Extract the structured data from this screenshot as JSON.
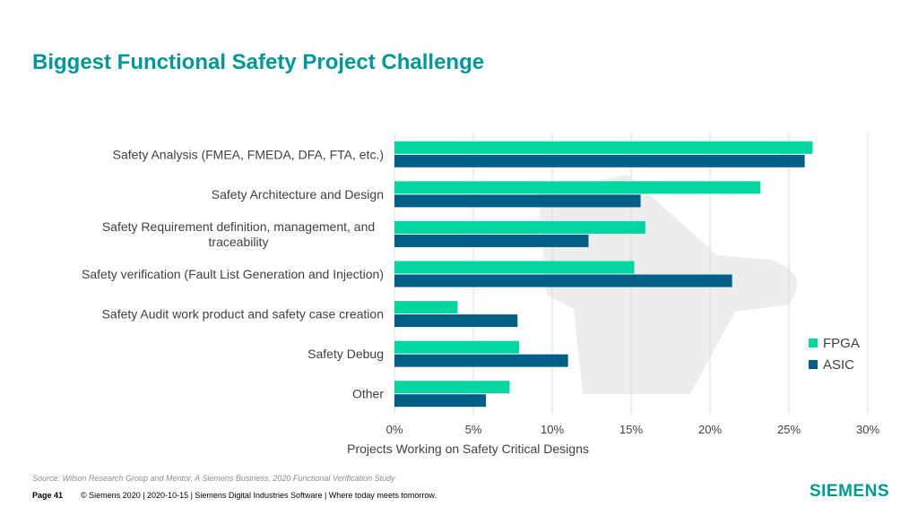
{
  "slide": {
    "title": "Biggest Functional Safety Project Challenge",
    "source": "Source:  Wilson Research Group and Mentor, A Siemens Business, 2020 Functional Verification Study",
    "page_label": "Page 41",
    "footer_text": "© Siemens 2020 | 2020-10-15 | Siemens Digital Industries Software | Where today meets tomorrow.",
    "logo": "SIEMENS"
  },
  "colors": {
    "title": "#009999",
    "fpga": "#00D7A0",
    "asic": "#005F87",
    "grid": "#D9D9D9",
    "watermark": "#EDEDED"
  },
  "chart_data": {
    "type": "bar",
    "orientation": "horizontal",
    "categories": [
      [
        "Safety Analysis (FMEA, FMEDA, DFA, FTA, etc.)"
      ],
      [
        "Safety Architecture and Design"
      ],
      [
        "Safety Requirement definition, management, and",
        "traceability"
      ],
      [
        "Safety verification (Fault List Generation and Injection)"
      ],
      [
        "Safety Audit work product and safety case creation"
      ],
      [
        "Safety Debug"
      ],
      [
        "Other"
      ]
    ],
    "series": [
      {
        "name": "FPGA",
        "values": [
          26.5,
          23.2,
          15.9,
          15.2,
          4.0,
          7.9,
          7.3
        ]
      },
      {
        "name": "ASIC",
        "values": [
          26.0,
          15.6,
          12.3,
          21.4,
          7.8,
          11.0,
          5.8
        ]
      }
    ],
    "xlabel": "Projects Working on Safety Critical Designs",
    "xlim": [
      0,
      30
    ],
    "xticks": [
      0,
      5,
      10,
      15,
      20,
      25,
      30
    ],
    "tick_format": "percent",
    "grid": true,
    "legend": "right"
  }
}
